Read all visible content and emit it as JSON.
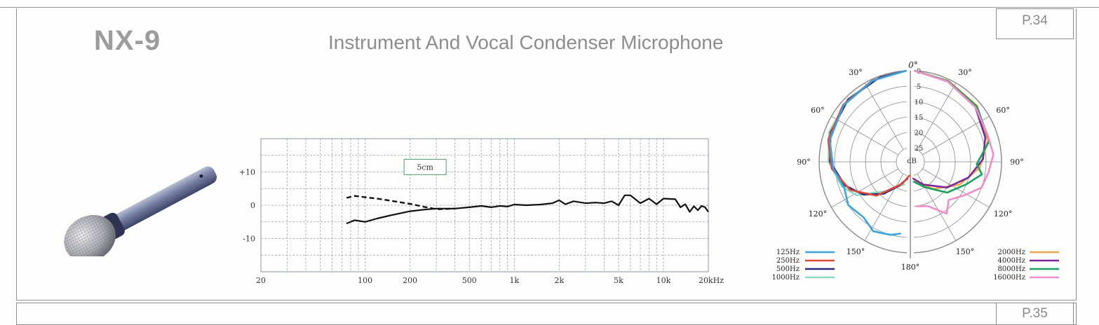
{
  "page": {
    "number": "P.34",
    "next_number": "P.35"
  },
  "product": {
    "model": "NX-9",
    "description": "Instrument And Vocal Condenser Microphone"
  },
  "frequency_response": {
    "y_ticks": [
      "+10",
      "0",
      "-10"
    ],
    "x_ticks": [
      "20",
      "100",
      "200",
      "500",
      "1k",
      "2k",
      "5k",
      "10k",
      "20kHz"
    ],
    "annotation": "5cm"
  },
  "polar_pattern": {
    "angles_left": [
      "30°",
      "60°",
      "90°",
      "120°",
      "150°"
    ],
    "angles_right": [
      "30°",
      "60°",
      "90°",
      "120°",
      "150°"
    ],
    "angle_top": "0°",
    "angle_bottom": "180°",
    "rings": [
      "0",
      "5",
      "10",
      "15",
      "20",
      "25"
    ],
    "unit": "dB",
    "legend_left": [
      {
        "label": "125Hz",
        "color": "#3aa6dd"
      },
      {
        "label": "250Hz",
        "color": "#e04a3a"
      },
      {
        "label": "500Hz",
        "color": "#2a2a7a"
      },
      {
        "label": "1000Hz",
        "color": "#8fd8c4"
      }
    ],
    "legend_right": [
      {
        "label": "2000Hz",
        "color": "#f0a64a"
      },
      {
        "label": "4000Hz",
        "color": "#7a2a9a"
      },
      {
        "label": "8000Hz",
        "color": "#1aa060"
      },
      {
        "label": "16000Hz",
        "color": "#ef8ec8"
      }
    ]
  },
  "chart_data": [
    {
      "type": "line",
      "x_scale": "log",
      "x": [
        75,
        85,
        100,
        120,
        150,
        200,
        250,
        300,
        400,
        500,
        600,
        700,
        800,
        900,
        1000,
        1200,
        1500,
        1800,
        2000,
        2200,
        2500,
        3000,
        3500,
        4000,
        4500,
        5000,
        5500,
        6000,
        7000,
        8000,
        9000,
        10000,
        12000,
        13000,
        14000,
        15000,
        16000,
        17000,
        18000,
        19000,
        20000
      ],
      "series": [
        {
          "values": [
            -5.5,
            -4.5,
            -5,
            -4,
            -3,
            -1.8,
            -1.3,
            -1,
            -1,
            -0.6,
            -0.2,
            -0.6,
            -0.2,
            -0.4,
            0.2,
            0,
            0.2,
            0.6,
            1.5,
            0.3,
            1.2,
            0.6,
            0.8,
            0.6,
            1.2,
            0,
            3,
            3,
            0.6,
            2,
            0.3,
            2,
            1.8,
            -0.6,
            0.3,
            -2,
            -0.3,
            -1.5,
            -0.2,
            -0.6,
            -2
          ]
        },
        {
          "values": [
            2.2,
            2.8,
            2.4,
            2.0,
            1.3,
            0.4,
            -0.5,
            -1.2,
            -1.0,
            null,
            null,
            null,
            null,
            null,
            null,
            null,
            null,
            null,
            null,
            null,
            null,
            null,
            null,
            null,
            null,
            null,
            null,
            null,
            null,
            null,
            null,
            null,
            null,
            null,
            null,
            null,
            null,
            null,
            null,
            null,
            null
          ]
        }
      ],
      "ylim": [
        -20,
        20
      ],
      "xlim": [
        20,
        20000
      ],
      "grid": true
    }
  ]
}
